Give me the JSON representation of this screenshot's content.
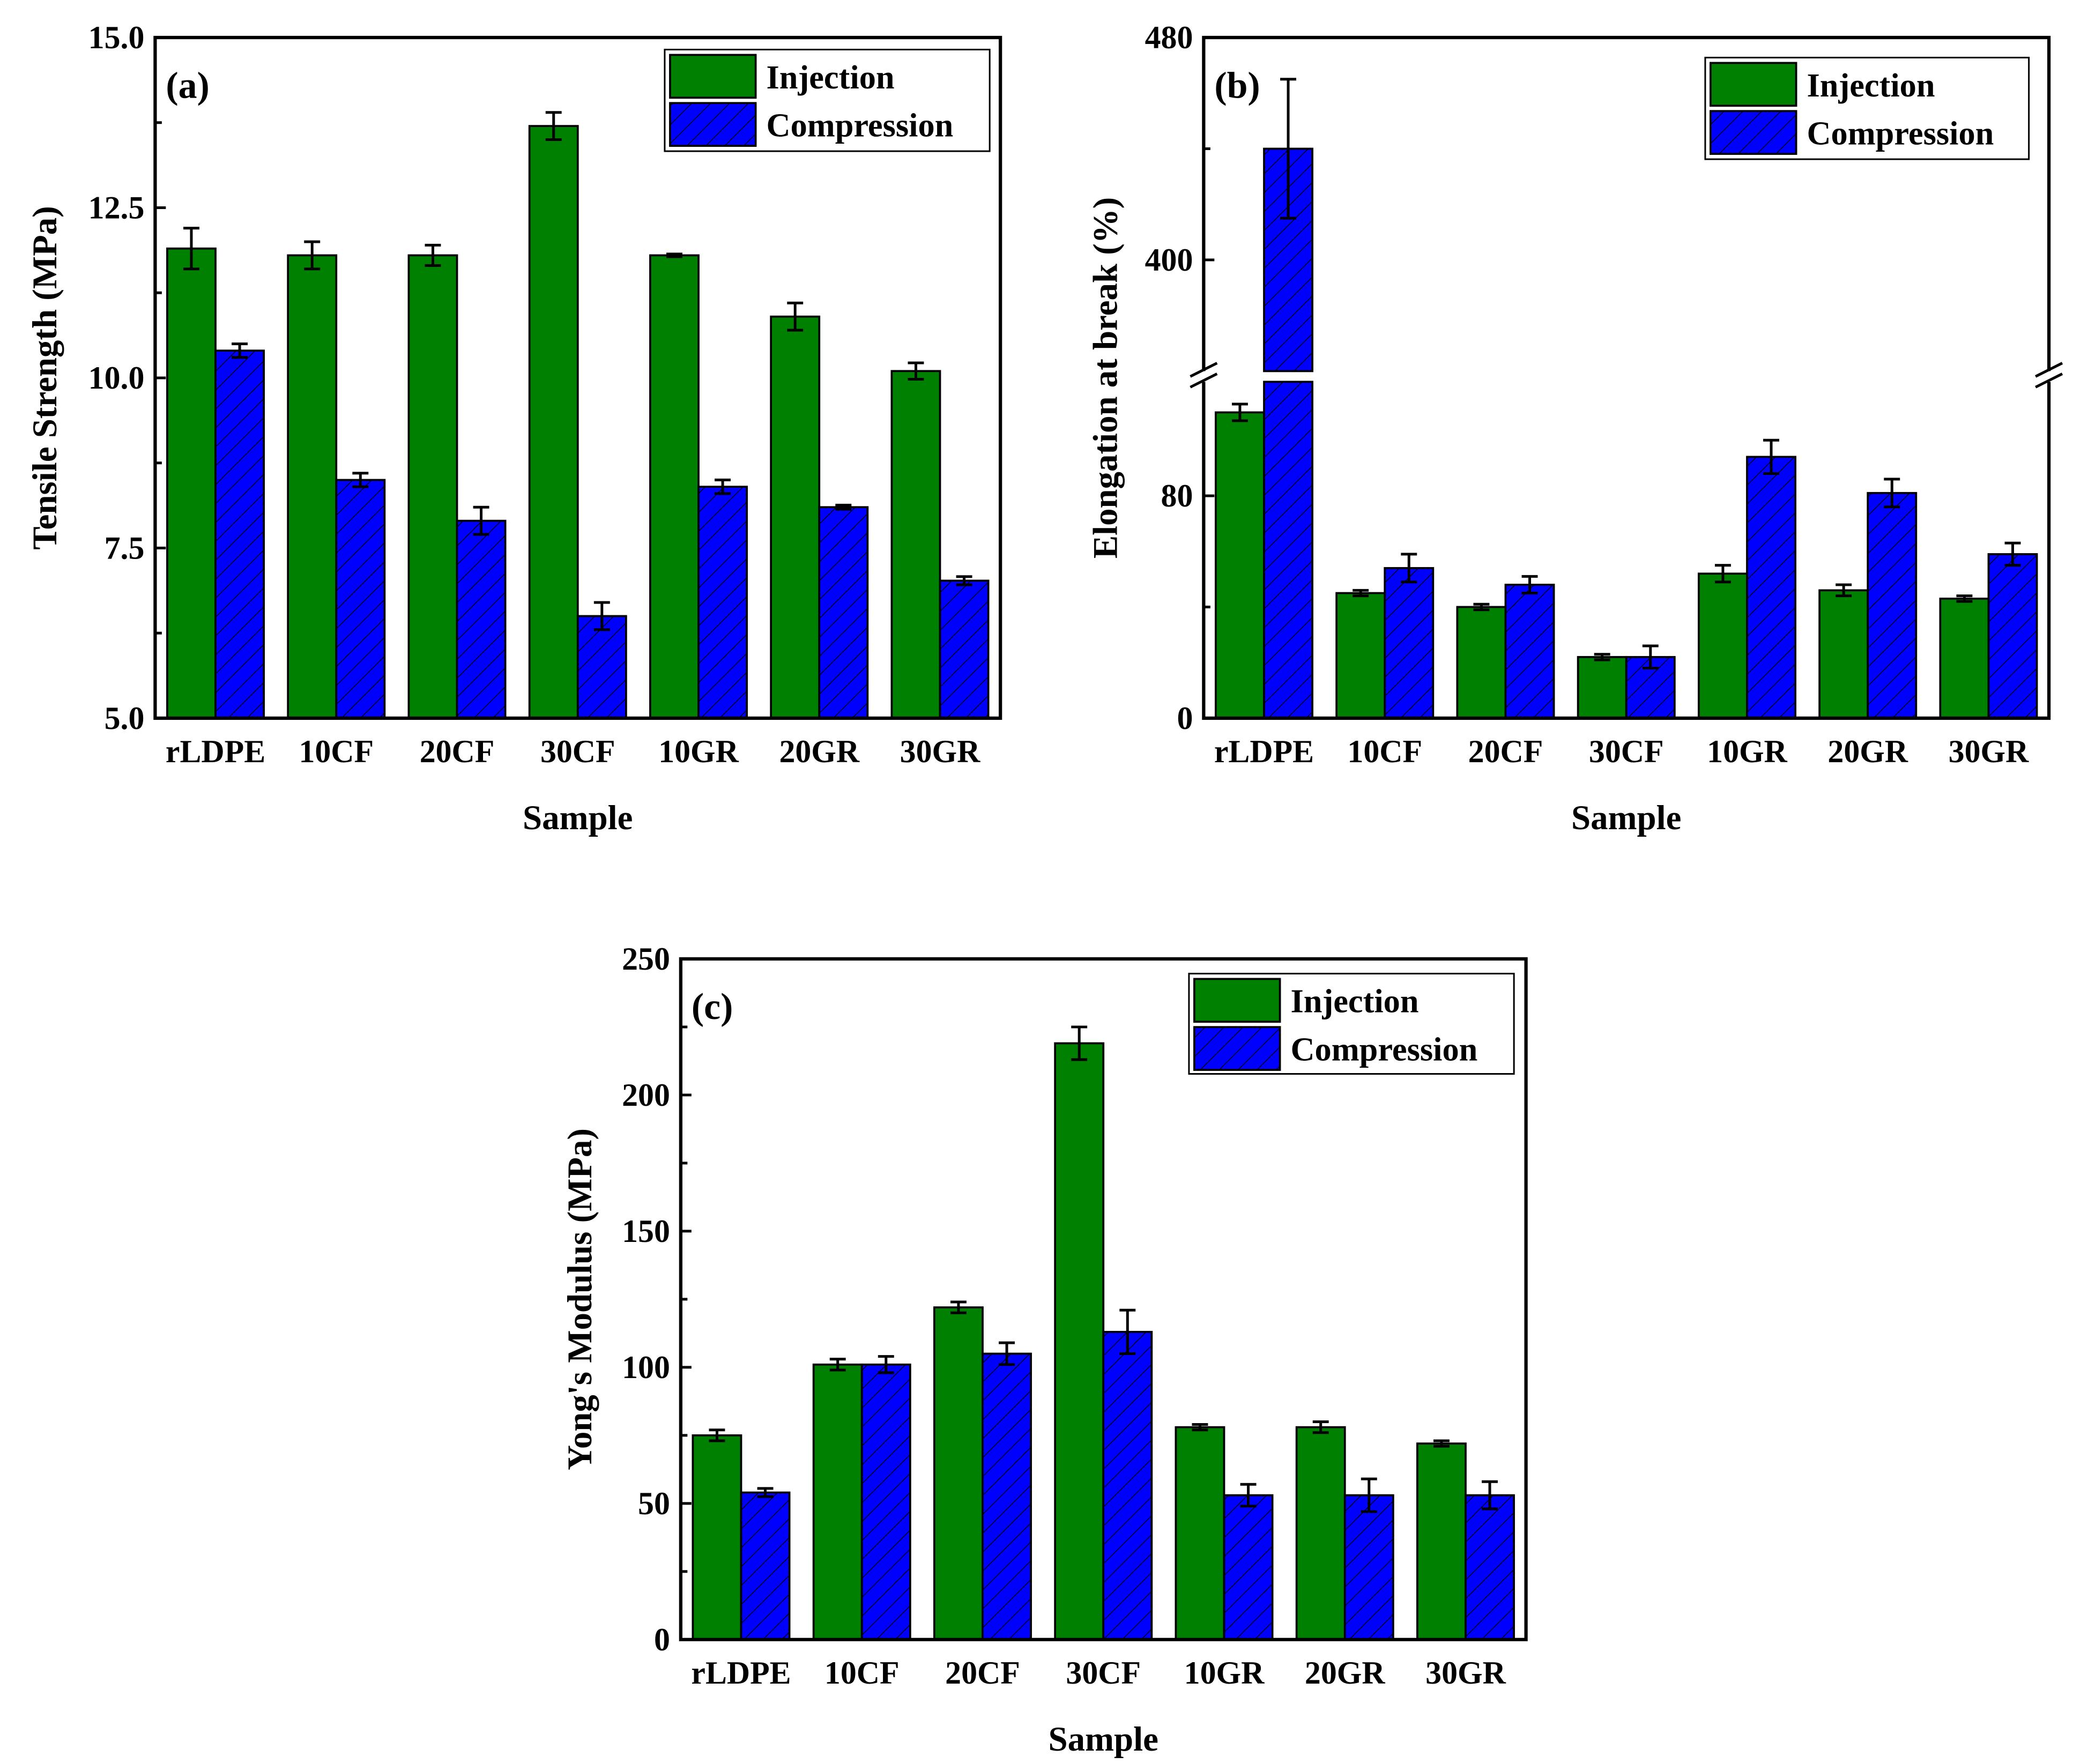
{
  "chart_data": [
    {
      "type": "bar",
      "panel_label": "(a)",
      "title": "",
      "xlabel": "Sample",
      "ylabel": "Tensile Strength (MPa)",
      "ylim": [
        5.0,
        15.0
      ],
      "yticks": [
        "5.0",
        "7.5",
        "10.0",
        "12.5",
        "15.0"
      ],
      "ytick_values": [
        5.0,
        7.5,
        10.0,
        12.5,
        15.0
      ],
      "minor_ticks": [
        6.25,
        8.75,
        11.25,
        13.75
      ],
      "categories": [
        "rLDPE",
        "10CF",
        "20CF",
        "30CF",
        "10GR",
        "20GR",
        "30GR"
      ],
      "legend_position": "top-right",
      "series": [
        {
          "name": "Injection",
          "color": "#008000",
          "hatch": false,
          "values": [
            11.9,
            11.8,
            11.8,
            13.7,
            11.8,
            10.9,
            10.1
          ],
          "errors": [
            0.3,
            0.2,
            0.15,
            0.2,
            0.02,
            0.2,
            0.12
          ]
        },
        {
          "name": "Compression",
          "color": "#0000FF",
          "hatch": true,
          "values": [
            10.4,
            8.5,
            7.9,
            6.5,
            8.4,
            8.1,
            7.02
          ],
          "errors": [
            0.1,
            0.1,
            0.2,
            0.2,
            0.1,
            0.03,
            0.06
          ]
        }
      ]
    },
    {
      "type": "bar",
      "panel_label": "(b)",
      "title": "",
      "xlabel": "Sample",
      "ylabel": "Elongation at break (%)",
      "ylim": [
        0,
        480
      ],
      "axis_break": [
        121,
        360
      ],
      "yticks": [
        "0",
        "80",
        "400",
        "480"
      ],
      "ytick_values": [
        0,
        80,
        400,
        480
      ],
      "minor_ticks": [
        40,
        440
      ],
      "categories": [
        "rLDPE",
        "10CF",
        "20CF",
        "30CF",
        "10GR",
        "20GR",
        "30GR"
      ],
      "legend_position": "top-right",
      "series": [
        {
          "name": "Injection",
          "color": "#008000",
          "hatch": false,
          "values": [
            110,
            45,
            40,
            22,
            52,
            46,
            43
          ],
          "errors": [
            3,
            1,
            1,
            1,
            3,
            2,
            1
          ]
        },
        {
          "name": "Compression",
          "color": "#0000FF",
          "hatch": true,
          "values": [
            440,
            54,
            48,
            22,
            94,
            81,
            59
          ],
          "errors": [
            25,
            5,
            3,
            4,
            6,
            5,
            4
          ]
        }
      ]
    },
    {
      "type": "bar",
      "panel_label": "(c)",
      "title": "",
      "xlabel": "Sample",
      "ylabel": "Yong's Modulus (MPa)",
      "ylim": [
        0,
        250
      ],
      "yticks": [
        "0",
        "50",
        "100",
        "150",
        "200",
        "250"
      ],
      "ytick_values": [
        0,
        50,
        100,
        150,
        200,
        250
      ],
      "minor_ticks": [
        25,
        75,
        125,
        175,
        225
      ],
      "categories": [
        "rLDPE",
        "10CF",
        "20CF",
        "30CF",
        "10GR",
        "20GR",
        "30GR"
      ],
      "legend_position": "top-right",
      "series": [
        {
          "name": "Injection",
          "color": "#008000",
          "hatch": false,
          "values": [
            75,
            101,
            122,
            219,
            78,
            78,
            72
          ],
          "errors": [
            2,
            2,
            2,
            6,
            1,
            2,
            1
          ]
        },
        {
          "name": "Compression",
          "color": "#0000FF",
          "hatch": true,
          "values": [
            54,
            101,
            105,
            113,
            53,
            53,
            53
          ],
          "errors": [
            1.5,
            3,
            4,
            8,
            4,
            6,
            5
          ]
        }
      ]
    }
  ]
}
